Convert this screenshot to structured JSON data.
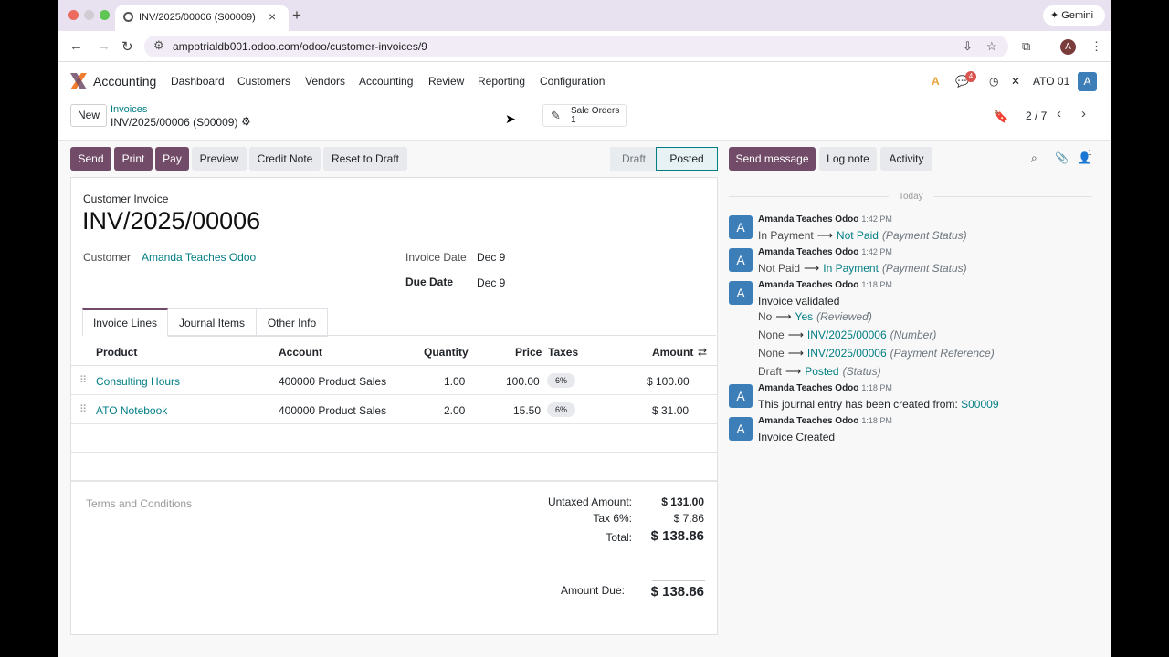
{
  "browser": {
    "tab_title": "INV/2025/00006 (S00009)",
    "url": "ampotrialdb001.odoo.com/odoo/customer-invoices/9",
    "gemini_label": "Gemini",
    "profile_initial": "A"
  },
  "navbar": {
    "app_name": "Accounting",
    "menu": [
      "Dashboard",
      "Customers",
      "Vendors",
      "Accounting",
      "Review",
      "Reporting",
      "Configuration"
    ],
    "chat_badge": "4",
    "company": "ATO 01",
    "user_initial": "A"
  },
  "control_panel": {
    "new_label": "New",
    "breadcrumb_parent": "Invoices",
    "breadcrumb_current": "INV/2025/00006 (S00009)",
    "smart_button_label": "Sale Orders",
    "smart_button_count": "1",
    "pager": "2 / 7"
  },
  "actions": {
    "send": "Send",
    "print": "Print",
    "pay": "Pay",
    "preview": "Preview",
    "credit_note": "Credit Note",
    "reset_to_draft": "Reset to Draft"
  },
  "status": {
    "draft": "Draft",
    "posted": "Posted",
    "active": "Posted"
  },
  "invoice": {
    "doc_type": "Customer Invoice",
    "number": "INV/2025/00006",
    "customer_label": "Customer",
    "customer": "Amanda Teaches Odoo",
    "invoice_date_label": "Invoice Date",
    "invoice_date": "Dec 9",
    "due_date_label": "Due Date",
    "due_date": "Dec 9"
  },
  "tabs": [
    "Invoice Lines",
    "Journal Items",
    "Other Info"
  ],
  "lines_table": {
    "headers": [
      "Product",
      "Account",
      "Quantity",
      "Price",
      "Taxes",
      "Amount"
    ],
    "rows": [
      {
        "product": "Consulting Hours",
        "account": "400000 Product Sales",
        "quantity": "1.00",
        "price": "100.00",
        "tax": "6%",
        "amount": "$ 100.00"
      },
      {
        "product": "ATO Notebook",
        "account": "400000 Product Sales",
        "quantity": "2.00",
        "price": "15.50",
        "tax": "6%",
        "amount": "$ 31.00"
      }
    ]
  },
  "terms_placeholder": "Terms and Conditions",
  "totals": {
    "untaxed_label": "Untaxed Amount:",
    "untaxed": "$ 131.00",
    "tax_label": "Tax 6%:",
    "tax": "$ 7.86",
    "total_label": "Total:",
    "total": "$ 138.86",
    "due_label": "Amount Due:",
    "due": "$ 138.86"
  },
  "chatter": {
    "send_message": "Send message",
    "log_note": "Log note",
    "activity": "Activity",
    "followers_count": "1",
    "today_label": "Today",
    "messages": [
      {
        "author": "Amanda Teaches Odoo",
        "time": "1:42 PM",
        "avatar": "A",
        "tracking": [
          {
            "old": "In Payment",
            "new": "Not Paid",
            "field": "(Payment Status)"
          }
        ]
      },
      {
        "author": "Amanda Teaches Odoo",
        "time": "1:42 PM",
        "avatar": "A",
        "tracking": [
          {
            "old": "Not Paid",
            "new": "In Payment",
            "field": "(Payment Status)"
          }
        ]
      },
      {
        "author": "Amanda Teaches Odoo",
        "time": "1:18 PM",
        "avatar": "A",
        "body": "Invoice validated",
        "tracking": [
          {
            "old": "No",
            "new": "Yes",
            "field": "(Reviewed)"
          },
          {
            "old": "None",
            "new": "INV/2025/00006",
            "field": "(Number)"
          },
          {
            "old": "None",
            "new": "INV/2025/00006",
            "field": "(Payment Reference)"
          },
          {
            "old": "Draft",
            "new": "Posted",
            "field": "(Status)"
          }
        ]
      },
      {
        "author": "Amanda Teaches Odoo",
        "time": "1:18 PM",
        "avatar": "A",
        "body": "This journal entry has been created from:",
        "link": "S00009"
      },
      {
        "author": "Amanda Teaches Odoo",
        "time": "1:18 PM",
        "avatar": "A",
        "body": "Invoice Created"
      }
    ]
  },
  "colors": {
    "primary": "#714b67",
    "link": "#017e84",
    "avatar": "#3c7eb8"
  }
}
